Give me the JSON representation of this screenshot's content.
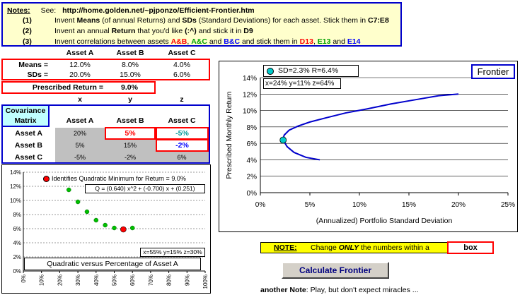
{
  "notes": {
    "title": "Notes:",
    "see": "See:",
    "url": "http://home.golden.net/~pjponzo/Efficient-Frontier.htm",
    "items": [
      {
        "num": "(1)",
        "t1": "Invent ",
        "b1": "Means",
        "t2": " (of annual Returns) and ",
        "b2": "SDs",
        "t3": " (Standard Deviations) for each asset. Stick them in ",
        "ref": "C7:E8"
      },
      {
        "num": "(2)",
        "t1": "Invent an annual ",
        "b1": "Return",
        "t2": " that you'd like ",
        "b2": "(:^)",
        "t3": " and stick it in ",
        "ref": "D9"
      },
      {
        "num": "(3)",
        "t1": "Invent correlations between assets ",
        "ab": "A&B",
        "sep1": ", ",
        "ac": "A&C",
        "sep2": " and ",
        "bc": "B&C",
        "t2": " and stick them in ",
        "d13": "D13",
        "sep3": ", ",
        "e13": "E13",
        "sep4": " and ",
        "e14": "E14"
      }
    ]
  },
  "assets": {
    "headers": [
      "Asset A",
      "Asset B",
      "Asset C"
    ],
    "means_label": "Means =",
    "sds_label": "SDs =",
    "means": [
      "12.0%",
      "8.0%",
      "4.0%"
    ],
    "sds": [
      "20.0%",
      "15.0%",
      "6.0%"
    ],
    "prescribed_label": "Prescribed Return =",
    "prescribed_value": "9.0%"
  },
  "covariance": {
    "title1": "Covariance",
    "title2": "Matrix",
    "xyz": [
      "x",
      "y",
      "z"
    ],
    "headers": [
      "Asset A",
      "Asset B",
      "Asset C"
    ],
    "rows": [
      {
        "label": "Asset A",
        "cells": [
          "20%",
          "5%",
          "-5%"
        ]
      },
      {
        "label": "Asset B",
        "cells": [
          "5%",
          "15%",
          "-2%"
        ]
      },
      {
        "label": "Asset C",
        "cells": [
          "-5%",
          "-2%",
          "6%"
        ]
      }
    ]
  },
  "frontier_panel": {
    "legend": "SD=2.3%  R=6.4%",
    "alloc": "x=24% y=11% z=64%",
    "tag": "Frontier"
  },
  "quad_panel": {
    "legend": "Identifies Quadratic  Minimum for Return = 9.0%",
    "equation": "Q = (0.640) x^2 + (-0.700) x + (0.251)",
    "alloc": "x=55% y=15% z=30%",
    "caption": "Quadratic versus Percentage of Asset A"
  },
  "note2": {
    "label": "NOTE:",
    "text_pre": "Change ",
    "text_em": "ONLY",
    "text_post": " the numbers within a",
    "box": "box"
  },
  "calc_button": "Calculate Frontier",
  "another_note": {
    "bold": "another Note",
    "rest": ": Play, but don't expect miracles ..."
  },
  "colors": {
    "note_bg": "#ffffcc",
    "box_red": "#ff0000",
    "box_blue": "#0000cc",
    "curve": "#0000cc",
    "marker": "#00cccc",
    "min_marker": "#ff0000",
    "dots": "#00c000"
  },
  "chart_data": [
    {
      "type": "line",
      "xlabel": "(Annualized) Portfolio Standard Deviation",
      "ylabel": "Prescribed Monthly Return",
      "xlim": [
        0,
        25
      ],
      "ylim": [
        0,
        14
      ],
      "x_ticks": [
        "0%",
        "5%",
        "10%",
        "15%",
        "20%",
        "25%"
      ],
      "y_ticks": [
        "0%",
        "2%",
        "4%",
        "6%",
        "8%",
        "10%",
        "12%",
        "14%"
      ],
      "series": [
        {
          "x": [
            6.0,
            4.6,
            3.4,
            2.7,
            2.3,
            2.4,
            2.9,
            3.8,
            5.0,
            6.6,
            8.6,
            10.8,
            13.2,
            15.6,
            18.0,
            20.0
          ],
          "y": [
            4.0,
            4.3,
            4.9,
            5.6,
            6.4,
            7.0,
            7.6,
            8.1,
            8.6,
            9.1,
            9.7,
            10.2,
            10.8,
            11.3,
            11.8,
            12.0
          ]
        }
      ],
      "highlight": {
        "x": 2.3,
        "y": 6.4
      },
      "grid": "horizontal"
    },
    {
      "type": "scatter",
      "xlim": [
        0,
        100
      ],
      "ylim": [
        0,
        14
      ],
      "x_ticks": [
        "0%",
        "10%",
        "20%",
        "30%",
        "40%",
        "50%",
        "60%",
        "70%",
        "80%",
        "90%",
        "100%"
      ],
      "y_ticks": [
        "0%",
        "2%",
        "4%",
        "6%",
        "8%",
        "10%",
        "12%",
        "14%"
      ],
      "series": [
        {
          "x": [
            25,
            30,
            35,
            40,
            45,
            50,
            60
          ],
          "y": [
            11.5,
            9.8,
            8.4,
            7.2,
            6.5,
            6.1,
            6.1
          ]
        }
      ],
      "minimum": {
        "x": 55,
        "y": 5.9
      },
      "grid": "horizontal"
    }
  ]
}
